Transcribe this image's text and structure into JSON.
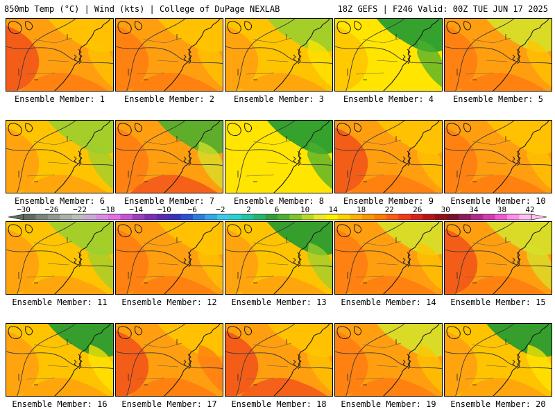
{
  "header": {
    "left": "850mb Temp (°C) | Wind (kts) | College of DuPage NEXLAB",
    "right": "18Z GEFS | F246 Valid: 00Z TUE JUN 17 2025"
  },
  "members": [
    {
      "label": "Ensemble Member: 1",
      "base": 1,
      "n": 0,
      "s": 1,
      "w": 2,
      "e": 0
    },
    {
      "label": "Ensemble Member: 2",
      "base": 1,
      "n": 0,
      "s": 1,
      "w": 1,
      "e": 0
    },
    {
      "label": "Ensemble Member: 3",
      "base": 0,
      "n": -1,
      "s": 1,
      "w": 1,
      "e": 0
    },
    {
      "label": "Ensemble Member: 4",
      "base": -1,
      "n": -2,
      "s": 0,
      "w": 1,
      "e": -1
    },
    {
      "label": "Ensemble Member: 5",
      "base": 1,
      "n": -1,
      "s": 1,
      "w": 1,
      "e": 0
    },
    {
      "label": "Ensemble Member: 6",
      "base": 0,
      "n": -1,
      "s": 1,
      "w": 1,
      "e": -1
    },
    {
      "label": "Ensemble Member: 7",
      "base": 1,
      "n": -2,
      "s": 2,
      "w": 1,
      "e": -1
    },
    {
      "label": "Ensemble Member: 8",
      "base": -1,
      "n": -2,
      "s": 0,
      "w": 0,
      "e": -1
    },
    {
      "label": "Ensemble Member: 9",
      "base": 1,
      "n": 0,
      "s": 1,
      "w": 2,
      "e": 0
    },
    {
      "label": "Ensemble Member: 10",
      "base": 1,
      "n": 0,
      "s": 1,
      "w": 1,
      "e": 0
    },
    {
      "label": "Ensemble Member: 11",
      "base": 0,
      "n": -1,
      "s": 1,
      "w": 1,
      "e": -1
    },
    {
      "label": "Ensemble Member: 12",
      "base": 1,
      "n": 0,
      "s": 1,
      "w": 1,
      "e": 0
    },
    {
      "label": "Ensemble Member: 13",
      "base": 0,
      "n": -2,
      "s": 1,
      "w": 1,
      "e": -1
    },
    {
      "label": "Ensemble Member: 14",
      "base": 1,
      "n": -1,
      "s": 1,
      "w": 1,
      "e": 0
    },
    {
      "label": "Ensemble Member: 15",
      "base": 1,
      "n": -1,
      "s": 1,
      "w": 2,
      "e": -1
    },
    {
      "label": "Ensemble Member: 16",
      "base": 0,
      "n": -2,
      "s": 1,
      "w": 1,
      "e": 0
    },
    {
      "label": "Ensemble Member: 17",
      "base": 1,
      "n": 0,
      "s": 1,
      "w": 2,
      "e": 1
    },
    {
      "label": "Ensemble Member: 18",
      "base": 1,
      "n": 0,
      "s": 2,
      "w": 2,
      "e": 0
    },
    {
      "label": "Ensemble Member: 19",
      "base": 1,
      "n": -1,
      "s": 1,
      "w": 1,
      "e": 0
    },
    {
      "label": "Ensemble Member: 20",
      "base": 0,
      "n": -2,
      "s": 1,
      "w": 1,
      "e": 0
    }
  ],
  "colorbar": {
    "ticks": [
      "−30",
      "−26",
      "−22",
      "−18",
      "−14",
      "−10",
      "−6",
      "−2",
      "2",
      "6",
      "10",
      "14",
      "18",
      "22",
      "26",
      "30",
      "34",
      "38",
      "42"
    ],
    "colors": [
      "#5f6b5f",
      "#7a8478",
      "#8f9990",
      "#a9b0a8",
      "#b9c0ba",
      "#c9a9d6",
      "#d78ee0",
      "#e36ee8",
      "#c553d6",
      "#9c3cc0",
      "#7a2fb3",
      "#5a2bb0",
      "#3b2fbf",
      "#2a4fd6",
      "#2b7be0",
      "#36a5e6",
      "#3fc7ea",
      "#2ad0cf",
      "#1fc4a4",
      "#26b46a",
      "#2e9e3a",
      "#4aae2f",
      "#7dc52c",
      "#b7d829",
      "#e8e82a",
      "#fff000",
      "#ffd000",
      "#ffb000",
      "#ff9500",
      "#ff7a00",
      "#ff5a10",
      "#f23a18",
      "#d8201c",
      "#b81418",
      "#941014",
      "#7a0f2a",
      "#8f1a5a",
      "#b02a8a",
      "#d43ab0",
      "#f05ad0",
      "#ff8ee6",
      "#ffc0f0"
    ]
  },
  "palette": {
    "dark_green": "#1f9a32",
    "green": "#4caf2f",
    "light_green": "#9ccf2d",
    "yellow_green": "#d6e12a",
    "yellow": "#ffe500",
    "gold": "#ffc400",
    "orange": "#ff9f10",
    "deep_orange": "#ff7b12",
    "red_orange": "#f2511a",
    "red": "#e0301c",
    "coast": "#1a1a1a"
  }
}
